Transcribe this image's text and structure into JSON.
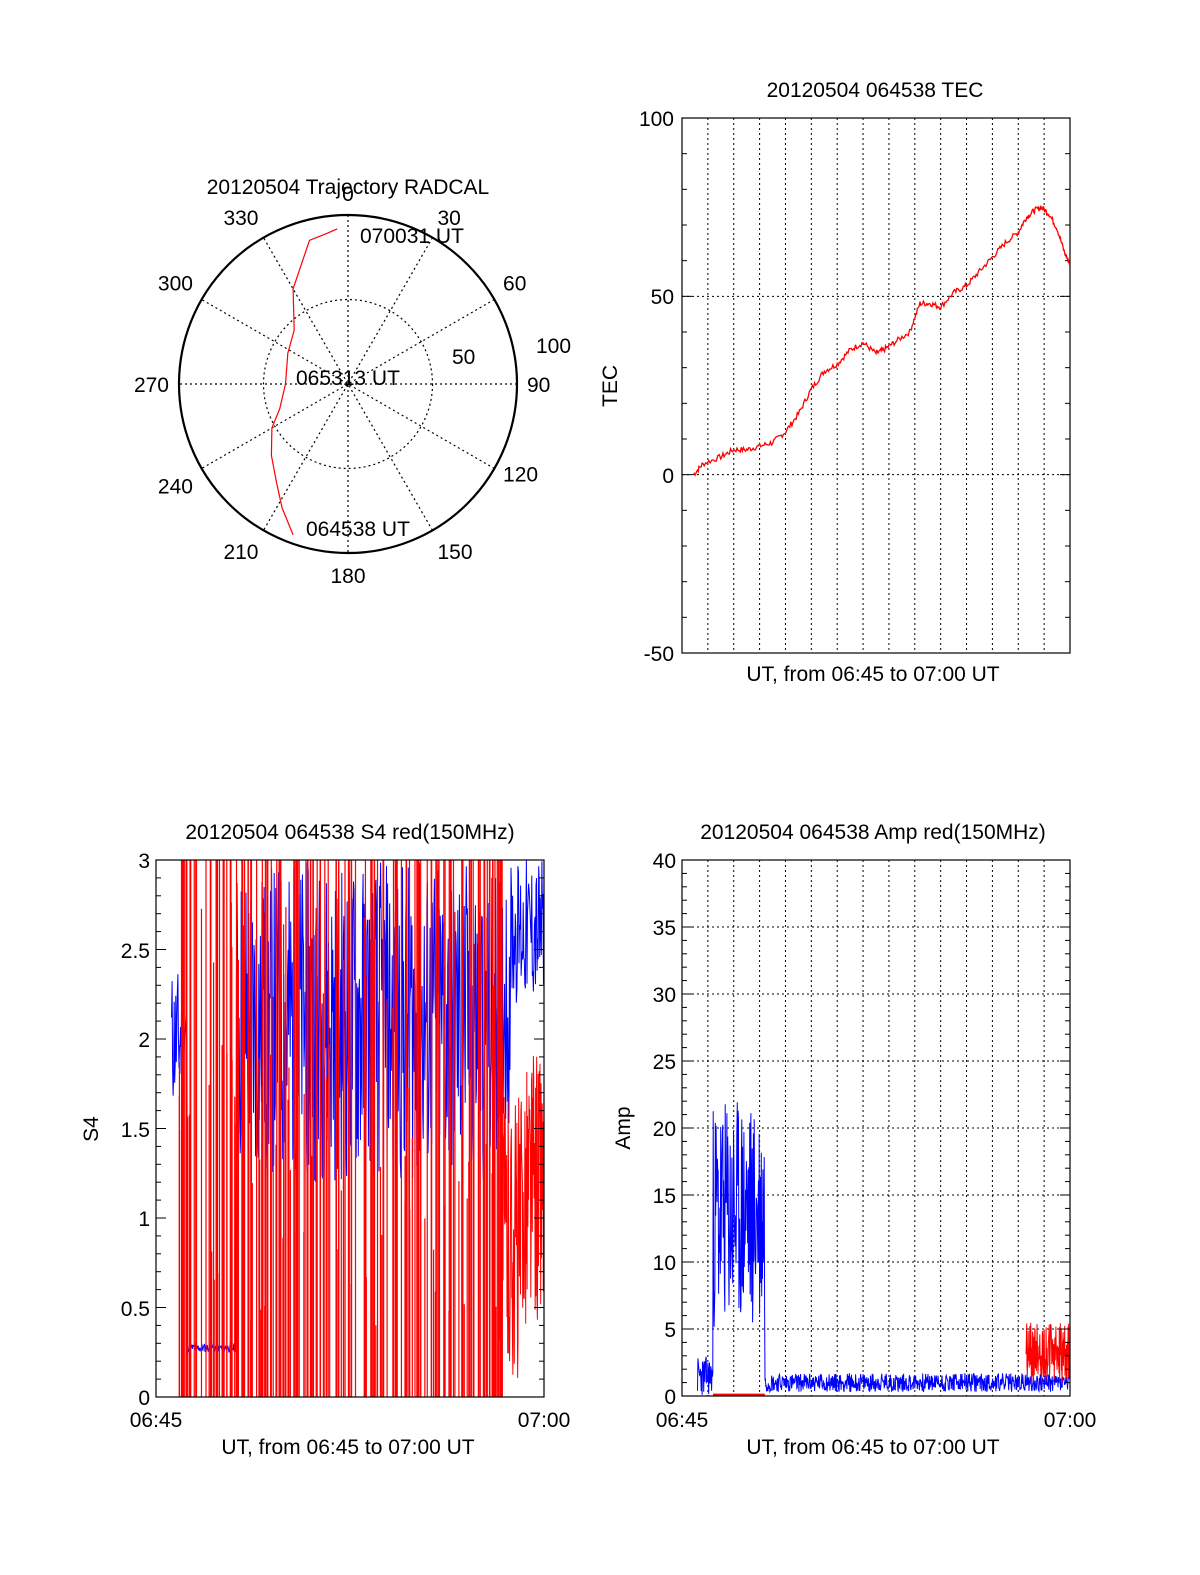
{
  "chart_data": [
    {
      "type": "polar",
      "title": "20120504 Trajectory RADCAL",
      "angle_labels": [
        "0",
        "30",
        "60",
        "90",
        "120",
        "150",
        "180",
        "210",
        "240",
        "270",
        "300",
        "330"
      ],
      "radius_labels": [
        "50",
        "100"
      ],
      "rmax": 100,
      "point_labels": {
        "start": "064538 UT",
        "mid": "065313 UT",
        "end": "070031 UT"
      },
      "trajectory": {
        "color": "#ff0000",
        "points": [
          [
            200,
            95
          ],
          [
            208,
            83
          ],
          [
            216,
            72
          ],
          [
            227,
            62
          ],
          [
            240,
            52
          ],
          [
            250,
            43
          ],
          [
            270,
            37
          ],
          [
            297,
            40
          ],
          [
            315,
            45
          ],
          [
            330,
            65
          ],
          [
            345,
            88
          ],
          [
            352,
            90
          ],
          [
            356,
            92
          ]
        ]
      }
    },
    {
      "type": "line",
      "title": "20120504 064538 TEC",
      "xlabel": "UT, from 06:45 to 07:00 UT",
      "ylabel": "TEC",
      "xlim": [
        0,
        15
      ],
      "ylim": [
        -50,
        100
      ],
      "yticks": [
        "100",
        "50",
        "0",
        "-50"
      ],
      "grid": true,
      "series": [
        {
          "color": "#ff0000",
          "x": [
            0.45,
            0.8,
            1.5,
            2.0,
            2.5,
            3.0,
            3.5,
            4.0,
            4.5,
            5.0,
            5.5,
            6.0,
            6.5,
            7.0,
            7.5,
            7.8,
            8.2,
            8.8,
            9.2,
            9.6,
            10.0,
            10.5,
            11.0,
            11.5,
            12.0,
            12.5,
            13.0,
            13.3,
            13.6,
            13.9,
            14.2,
            14.5,
            14.8,
            15.0
          ],
          "y": [
            0,
            3,
            5,
            7,
            7,
            8,
            9,
            12,
            17,
            24,
            29,
            31,
            35,
            37,
            34,
            35,
            37,
            40,
            48,
            48,
            47,
            51,
            53,
            57,
            61,
            65,
            68,
            72,
            74,
            75,
            73,
            69,
            62,
            59
          ]
        }
      ]
    },
    {
      "type": "line",
      "title": "20120504 064538 S4 red(150MHz)",
      "xlabel": "UT, from 06:45 to 07:00 UT",
      "ylabel": "S4",
      "xlim": [
        0,
        15
      ],
      "ylim": [
        0,
        3
      ],
      "xticks": [
        "06:45",
        "07:00"
      ],
      "yticks": [
        "3",
        "2.5",
        "2",
        "1.5",
        "1",
        "0.5",
        "0"
      ],
      "grid": false,
      "series": [
        {
          "color": "#0000ff",
          "style": "blue S4 trace (dense)"
        },
        {
          "color": "#ff0000",
          "style": "red S4 trace (dense vertical lines)"
        }
      ]
    },
    {
      "type": "line",
      "title": "20120504 064538 Amp red(150MHz)",
      "xlabel": "UT, from 06:45 to 07:00 UT",
      "ylabel": "Amp",
      "xlim": [
        0,
        15
      ],
      "ylim": [
        0,
        40
      ],
      "xticks": [
        "06:45",
        "07:00"
      ],
      "yticks": [
        "40",
        "35",
        "30",
        "25",
        "20",
        "15",
        "10",
        "5",
        "0"
      ],
      "grid": true,
      "series": [
        {
          "color": "#0000ff",
          "style": "blue amplitude (high 06:46–06:48, ~1 afterwards)"
        },
        {
          "color": "#ff0000",
          "style": "red amplitude (near 0, ~2–5 after 06:58)"
        }
      ]
    }
  ]
}
